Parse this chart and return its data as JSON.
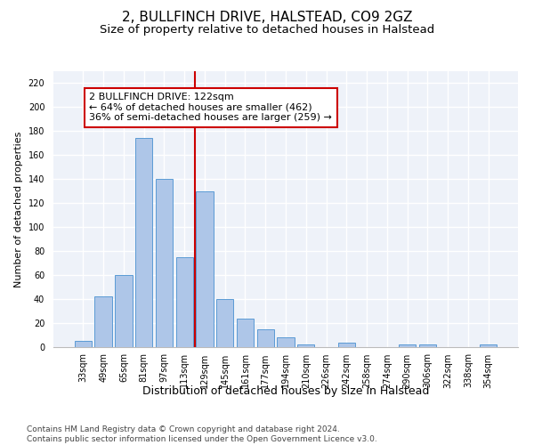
{
  "title1": "2, BULLFINCH DRIVE, HALSTEAD, CO9 2GZ",
  "title2": "Size of property relative to detached houses in Halstead",
  "xlabel": "Distribution of detached houses by size in Halstead",
  "ylabel": "Number of detached properties",
  "categories": [
    "33sqm",
    "49sqm",
    "65sqm",
    "81sqm",
    "97sqm",
    "113sqm",
    "129sqm",
    "145sqm",
    "161sqm",
    "177sqm",
    "194sqm",
    "210sqm",
    "226sqm",
    "242sqm",
    "258sqm",
    "274sqm",
    "290sqm",
    "306sqm",
    "322sqm",
    "338sqm",
    "354sqm"
  ],
  "values": [
    5,
    42,
    60,
    174,
    140,
    75,
    130,
    40,
    24,
    15,
    8,
    2,
    0,
    4,
    0,
    0,
    2,
    2,
    0,
    0,
    2
  ],
  "bar_color": "#aec6e8",
  "bar_edge_color": "#5b9bd5",
  "vline_x": 5.5,
  "vline_color": "#cc0000",
  "annotation_text": "2 BULLFINCH DRIVE: 122sqm\n← 64% of detached houses are smaller (462)\n36% of semi-detached houses are larger (259) →",
  "annotation_box_color": "#ffffff",
  "annotation_box_edge": "#cc0000",
  "ylim": [
    0,
    230
  ],
  "yticks": [
    0,
    20,
    40,
    60,
    80,
    100,
    120,
    140,
    160,
    180,
    200,
    220
  ],
  "footer": "Contains HM Land Registry data © Crown copyright and database right 2024.\nContains public sector information licensed under the Open Government Licence v3.0.",
  "bg_color": "#eef2f9",
  "grid_color": "#ffffff",
  "title1_fontsize": 11,
  "title2_fontsize": 9.5,
  "xlabel_fontsize": 9,
  "ylabel_fontsize": 8,
  "footer_fontsize": 6.5,
  "annotation_fontsize": 8,
  "tick_fontsize": 7
}
